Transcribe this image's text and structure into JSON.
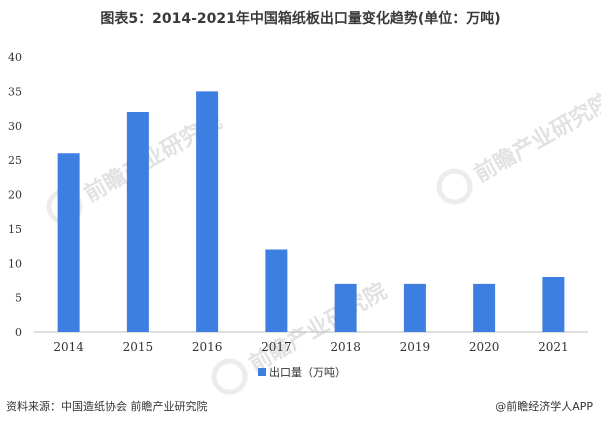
{
  "header": {
    "title": "图表5：2014-2021年中国箱纸板出口量变化趋势(单位：万吨)"
  },
  "footer": {
    "source": "资料来源：中国造纸协会 前瞻产业研究院",
    "brand": "@前瞻经济学人APP"
  },
  "watermark": {
    "text": "前瞻产业研究院"
  },
  "colors": {
    "bar": "#3D7FE0",
    "axis": "#BFBFBF",
    "text": "#333333"
  },
  "chart_data": {
    "type": "bar",
    "title": "图表5：2014-2021年中国箱纸板出口量变化趋势(单位：万吨)",
    "categories": [
      "2014",
      "2015",
      "2016",
      "2017",
      "2018",
      "2019",
      "2020",
      "2021"
    ],
    "series": [
      {
        "name": "出口量（万吨）",
        "values": [
          26,
          32,
          35,
          12,
          7,
          7,
          7,
          8
        ]
      }
    ],
    "ylim": [
      0,
      40
    ],
    "yticks": [
      0,
      5,
      10,
      15,
      20,
      25,
      30,
      35,
      40
    ],
    "xlabel": "",
    "ylabel": "",
    "grid": false,
    "legend": "bottom"
  }
}
